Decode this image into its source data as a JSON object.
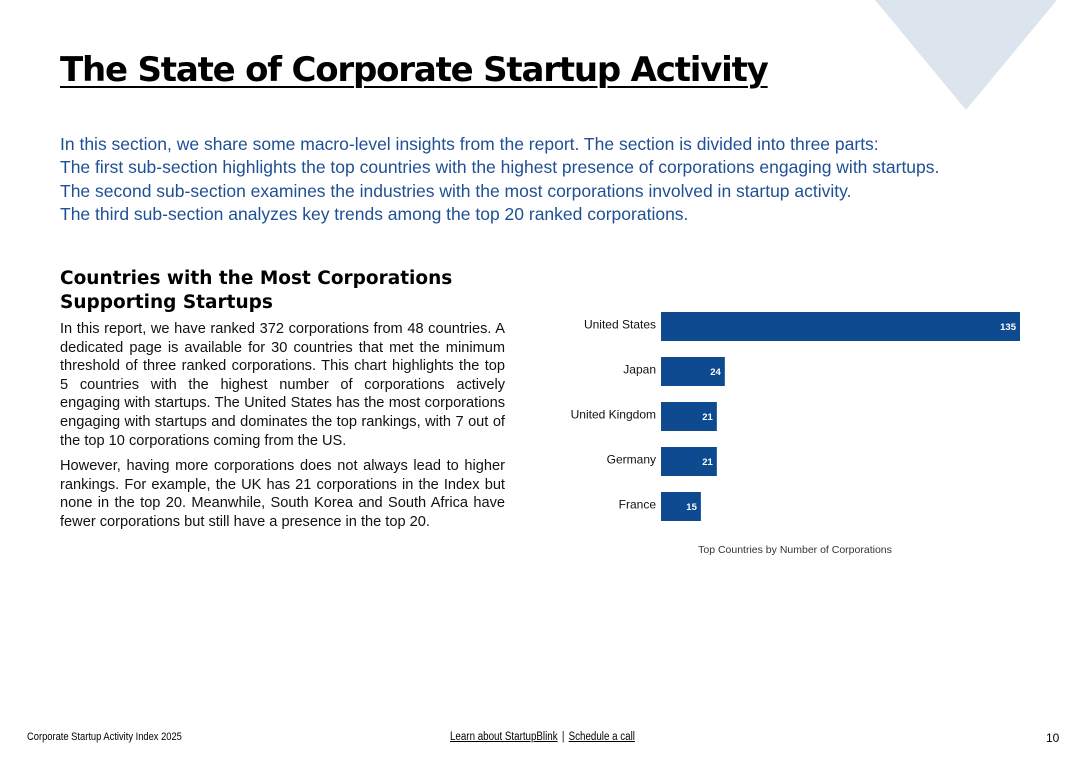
{
  "header": {
    "title": "The State of Corporate Startup Activity"
  },
  "intro_lines": [
    "In this section, we share some macro-level insights from the report. The section is divided into three parts:",
    "The first sub-section highlights the top countries with the highest presence of corporations engaging with startups.",
    "The second sub-section examines the industries with the most corporations involved in startup activity.",
    "The third sub-section analyzes key trends among the top 20 ranked corporations."
  ],
  "section": {
    "heading_line1": "Countries with the Most Corporations",
    "heading_line2": "Supporting Startups",
    "paragraph1": "In this report, we have ranked 372 corporations from 48 countries. A dedicated page is available for 30 countries that met the minimum threshold of three ranked corporations. This chart highlights the top 5 countries with the highest number of corporations actively engaging with startups. The United States has the most corporations engaging with startups and dominates the top rankings, with 7 out of the top 10 corporations coming from the US.",
    "paragraph2": "However, having more corporations does not always lead to higher rankings. For example, the UK has 21 corporations in the Index but none in the top 20. Meanwhile, South Korea and South Africa have fewer corporations but still have a presence in the top 20."
  },
  "chart_data": {
    "type": "bar",
    "orientation": "horizontal",
    "categories": [
      "United States",
      "Japan",
      "United Kingdom",
      "Germany",
      "France"
    ],
    "values": [
      135,
      24,
      21,
      21,
      15
    ],
    "caption": "Top Countries by Number of Corporations",
    "xlim": [
      0,
      135
    ],
    "grid": false,
    "data_labels": true,
    "bar_color": "#0d4a8f",
    "label_color": "#ffffff"
  },
  "footer": {
    "left": "Corporate Startup Activity Index 2025",
    "link1": "Learn about StartupBlink",
    "separator": "|",
    "link2": "Schedule a call",
    "page_number": "10"
  },
  "colors": {
    "accent_blue": "#1f4f95",
    "triangle": "#dce5ee"
  }
}
